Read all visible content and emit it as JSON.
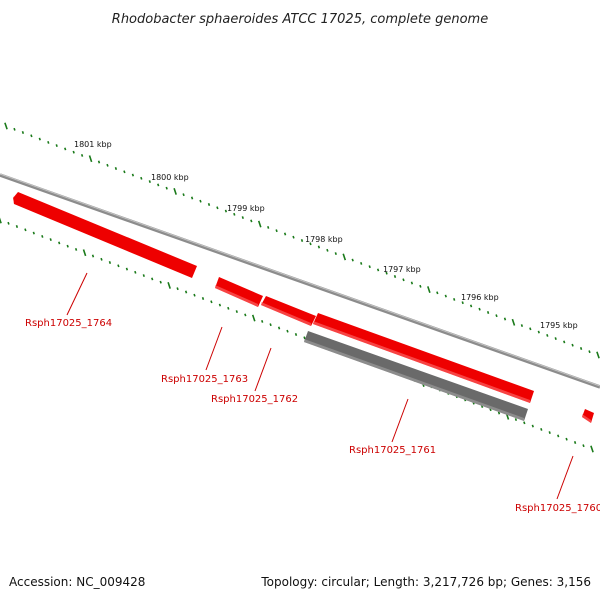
{
  "title": "Rhodobacter sphaeroides ATCC 17025, complete genome",
  "footer": {
    "accession": "Accession: NC_009428",
    "summary": "Topology: circular; Length: 3,217,726 bp; Genes: 3,156"
  },
  "colors": {
    "backbone": "#8c8c8c",
    "gene_forward": "#ee0000",
    "gene_reverse": "#6a6a6a",
    "ticks": "#1a7a1a",
    "gene_label": "#cc0000"
  },
  "ticks": [
    {
      "label": "1801 kbp"
    },
    {
      "label": "1800 kbp"
    },
    {
      "label": "1799 kbp"
    },
    {
      "label": "1798 kbp"
    },
    {
      "label": "1797 kbp"
    },
    {
      "label": "1796 kbp"
    },
    {
      "label": "1795 kbp"
    }
  ],
  "genes": [
    {
      "name": "Rsph17025_1764",
      "strand": "forward",
      "labeled": true
    },
    {
      "name": "Rsph17025_1763",
      "strand": "forward",
      "labeled": true
    },
    {
      "name": "Rsph17025_1762",
      "strand": "forward",
      "labeled": true
    },
    {
      "name": "Rsph17025_1761",
      "strand": "forward",
      "labeled": true
    },
    {
      "name": "",
      "strand": "reverse",
      "labeled": false
    },
    {
      "name": "Rsph17025_1760",
      "strand": "forward",
      "labeled": true
    }
  ]
}
